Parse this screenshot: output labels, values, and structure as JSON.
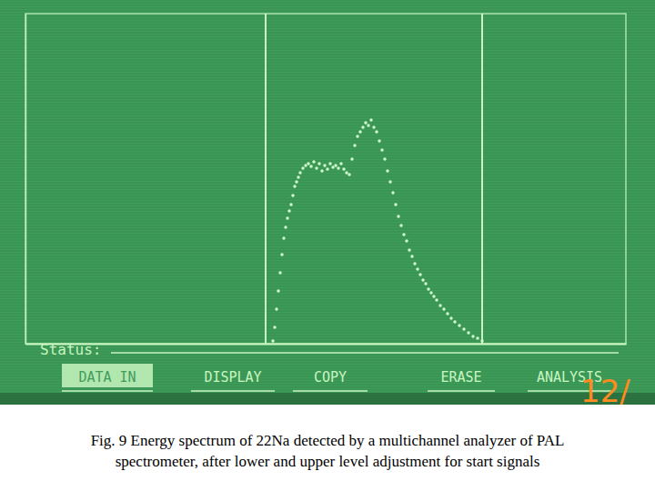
{
  "chart_data": {
    "type": "scatter",
    "caption": [
      "Fig. 9 Energy spectrum of 22Na detected by a multichannel analyzer of PAL",
      "spectrometer, after lower and upper level adjustment for start signals"
    ],
    "status_label": "Status:",
    "menu": [
      "DATA IN",
      "DISPLAY",
      "COPY",
      "ERASE",
      "ANALYSIS"
    ],
    "corner_label": "12/",
    "x": [
      272,
      274,
      276,
      278,
      280,
      282,
      284,
      286,
      288,
      290,
      292,
      294,
      296,
      298,
      300,
      302,
      305,
      308,
      311,
      314,
      317,
      320,
      323,
      326,
      329,
      332,
      335,
      338,
      341,
      344,
      347,
      350,
      353,
      356,
      359,
      362,
      365,
      368,
      371,
      374,
      377,
      380,
      383,
      386,
      389,
      392,
      395,
      398,
      401,
      404,
      407,
      410,
      413,
      416,
      419,
      422,
      425,
      428,
      431,
      434,
      437,
      440,
      443,
      446,
      449,
      452,
      456,
      460,
      464,
      468,
      472,
      477,
      482,
      487,
      492,
      497,
      502
    ],
    "values": [
      3,
      18,
      38,
      58,
      78,
      98,
      116,
      128,
      138,
      146,
      153,
      163,
      173,
      178,
      183,
      188,
      193,
      196,
      198,
      195,
      200,
      193,
      198,
      190,
      196,
      192,
      198,
      194,
      196,
      193,
      198,
      192,
      188,
      186,
      203,
      218,
      228,
      233,
      238,
      243,
      240,
      246,
      238,
      233,
      223,
      213,
      203,
      190,
      178,
      166,
      153,
      140,
      130,
      120,
      113,
      103,
      96,
      88,
      82,
      76,
      70,
      66,
      60,
      56,
      52,
      48,
      42,
      38,
      33,
      28,
      24,
      20,
      16,
      12,
      8,
      6,
      3
    ],
    "cursors": [
      264,
      502
    ],
    "xlim": [
      0,
      660
    ],
    "ylim": [
      0,
      363
    ],
    "xticks": [],
    "yticks": [],
    "tick_labels": false,
    "color": "#d2ffc8",
    "marker": "dot"
  }
}
